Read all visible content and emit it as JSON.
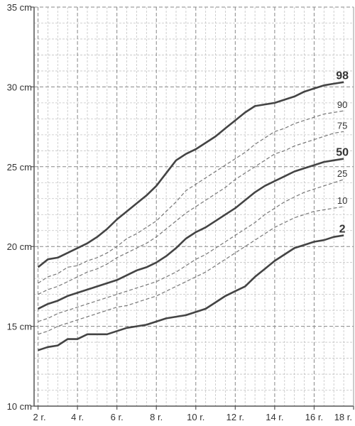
{
  "chart_data": {
    "type": "line",
    "title": "",
    "xlabel": "",
    "ylabel": "",
    "xlim": [
      1.8,
      18.0
    ],
    "ylim": [
      10,
      35
    ],
    "grid": true,
    "x_ticks": [
      2,
      4,
      6,
      8,
      10,
      12,
      14,
      16,
      18
    ],
    "x_tick_labels": [
      "2 r.",
      "4 r.",
      "6 r.",
      "8 r.",
      "10 r.",
      "12 r.",
      "14 r.",
      "16 r.",
      "18 r."
    ],
    "y_ticks": [
      10,
      15,
      20,
      25,
      30,
      35
    ],
    "y_tick_labels": [
      "10 cm",
      "15 cm",
      "20 cm",
      "25 cm",
      "30 cm",
      "35 cm"
    ],
    "x": [
      2.0,
      2.5,
      3.0,
      3.5,
      4.0,
      4.5,
      5.0,
      5.5,
      6.0,
      6.5,
      7.0,
      7.5,
      8.0,
      8.5,
      9.0,
      9.5,
      10.0,
      10.5,
      11.0,
      11.5,
      12.0,
      12.5,
      13.0,
      13.5,
      14.0,
      14.5,
      15.0,
      15.5,
      16.0,
      16.5,
      17.0,
      17.5
    ],
    "series": [
      {
        "name": "98",
        "emphasis": true,
        "values": [
          18.7,
          19.2,
          19.3,
          19.6,
          19.9,
          20.2,
          20.6,
          21.1,
          21.7,
          22.2,
          22.7,
          23.2,
          23.8,
          24.6,
          25.4,
          25.8,
          26.1,
          26.5,
          26.9,
          27.4,
          27.9,
          28.4,
          28.8,
          28.9,
          29.0,
          29.2,
          29.4,
          29.7,
          29.9,
          30.1,
          30.2,
          30.3
        ]
      },
      {
        "name": "90",
        "emphasis": false,
        "values": [
          17.7,
          18.1,
          18.3,
          18.7,
          18.8,
          19.1,
          19.3,
          19.6,
          20.0,
          20.5,
          20.8,
          21.2,
          21.6,
          22.2,
          22.8,
          23.5,
          23.9,
          24.3,
          24.7,
          25.1,
          25.5,
          25.9,
          26.4,
          26.8,
          27.2,
          27.4,
          27.7,
          27.9,
          28.1,
          28.3,
          28.4,
          28.5
        ]
      },
      {
        "name": "75",
        "emphasis": false,
        "values": [
          17.0,
          17.3,
          17.5,
          17.8,
          18.1,
          18.4,
          18.6,
          18.9,
          19.3,
          19.6,
          19.9,
          20.2,
          20.6,
          21.1,
          21.6,
          22.1,
          22.5,
          22.9,
          23.3,
          23.7,
          24.2,
          24.6,
          25.0,
          25.4,
          25.8,
          26.0,
          26.3,
          26.5,
          26.7,
          26.9,
          27.1,
          27.2
        ]
      },
      {
        "name": "50",
        "emphasis": true,
        "values": [
          16.1,
          16.4,
          16.6,
          16.9,
          17.1,
          17.3,
          17.5,
          17.7,
          17.9,
          18.2,
          18.5,
          18.7,
          19.0,
          19.4,
          19.9,
          20.5,
          20.9,
          21.2,
          21.6,
          22.0,
          22.4,
          22.9,
          23.4,
          23.8,
          24.1,
          24.4,
          24.7,
          24.9,
          25.1,
          25.3,
          25.4,
          25.5
        ]
      },
      {
        "name": "25",
        "emphasis": false,
        "values": [
          15.3,
          15.5,
          15.8,
          16.0,
          16.2,
          16.4,
          16.6,
          16.8,
          17.0,
          17.2,
          17.4,
          17.6,
          17.8,
          18.1,
          18.4,
          18.8,
          19.2,
          19.5,
          19.9,
          20.3,
          20.7,
          21.1,
          21.5,
          22.0,
          22.4,
          22.8,
          23.1,
          23.4,
          23.6,
          23.8,
          24.0,
          24.2
        ]
      },
      {
        "name": "10",
        "emphasis": false,
        "values": [
          14.5,
          14.7,
          15.0,
          15.2,
          15.4,
          15.6,
          15.8,
          16.0,
          16.2,
          16.3,
          16.5,
          16.7,
          16.9,
          17.2,
          17.5,
          17.8,
          18.1,
          18.4,
          18.8,
          19.2,
          19.6,
          20.0,
          20.4,
          20.8,
          21.2,
          21.5,
          21.8,
          22.0,
          22.2,
          22.3,
          22.4,
          22.5
        ]
      },
      {
        "name": "2",
        "emphasis": true,
        "values": [
          13.5,
          13.7,
          13.8,
          14.2,
          14.2,
          14.5,
          14.5,
          14.5,
          14.7,
          14.9,
          15.0,
          15.1,
          15.3,
          15.5,
          15.6,
          15.7,
          15.9,
          16.1,
          16.5,
          16.9,
          17.2,
          17.5,
          18.1,
          18.6,
          19.1,
          19.5,
          19.9,
          20.1,
          20.3,
          20.4,
          20.6,
          20.7
        ]
      }
    ]
  }
}
